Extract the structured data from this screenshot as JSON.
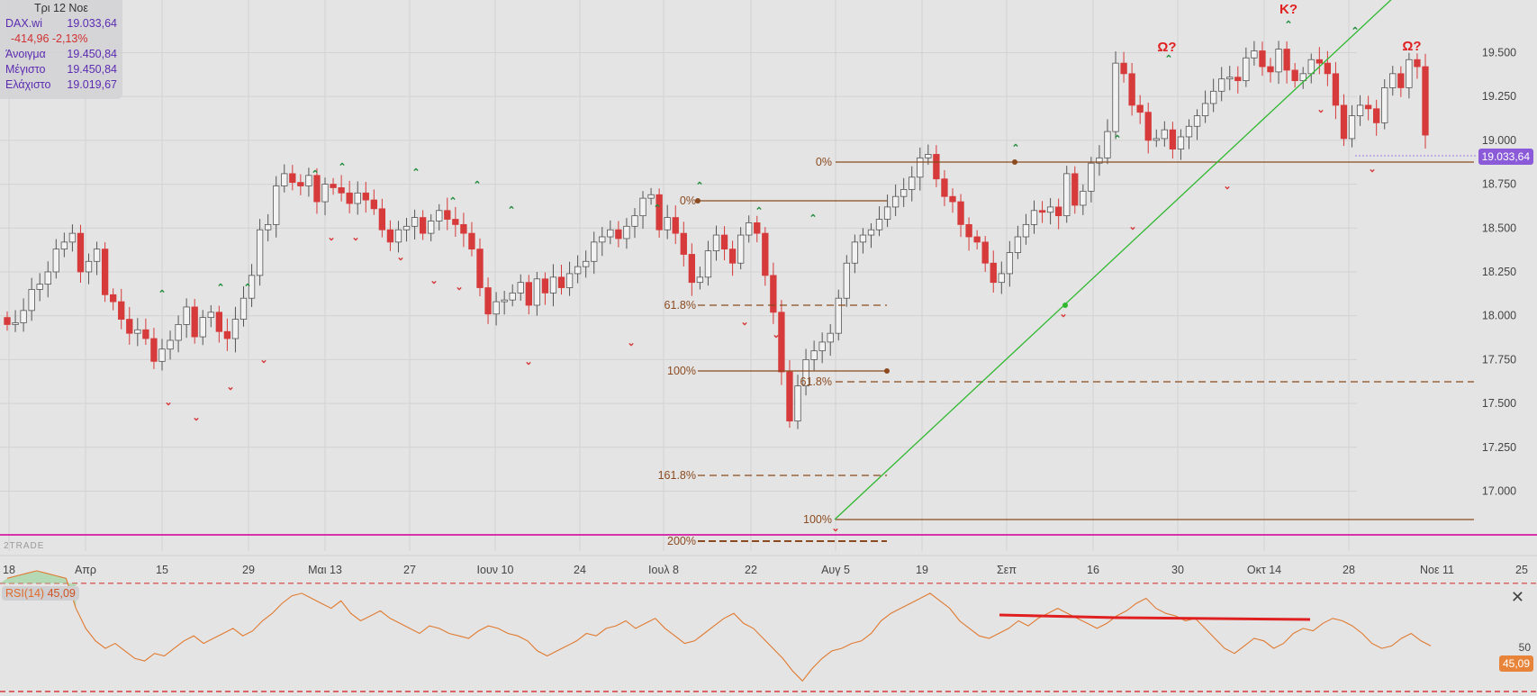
{
  "legend": {
    "date": "Τρι 12 Νοε",
    "symbol": "DAX.wi",
    "last": "19.033,64",
    "change": "-414,96 -2,13%",
    "open_label": "Άνοιγμα",
    "open": "19.450,84",
    "high_label": "Μέγιστο",
    "high": "19.450,84",
    "low_label": "Ελάχιστο",
    "low": "19.019,67"
  },
  "price_tag": "19.033,64",
  "watermark": "2TRADE",
  "rsi": {
    "label": "RSI(14)",
    "value": "45,09",
    "tag": "45,09",
    "level_label": "50",
    "close_icon": "close-icon"
  },
  "colors": {
    "bear": "#d63a3a",
    "bull": "#f2f2f2",
    "fib": "#8b4a1f",
    "trend": "#2eb82e",
    "support": "#d633aa",
    "rsi": "#e07a30",
    "accent": "#8a5ad8"
  },
  "chart_data": {
    "type": "candlestick",
    "y_ticks": [
      "19.500",
      "19.250",
      "19.000",
      "18.750",
      "18.500",
      "18.250",
      "18.000",
      "17.750",
      "17.500",
      "17.250",
      "17.000"
    ],
    "x_ticks": [
      "18",
      "Απρ",
      "15",
      "29",
      "Μαι 13",
      "27",
      "Ιουν 10",
      "24",
      "Ιουλ 8",
      "22",
      "Αυγ 5",
      "19",
      "Σεπ",
      "16",
      "30",
      "Οκτ 14",
      "28",
      "Νοε 11",
      "25"
    ],
    "ylim": [
      16900,
      19800
    ],
    "fib_labels_left": [
      "0%",
      "61.8%",
      "100%",
      "161.8%",
      "200%"
    ],
    "fib_labels_right": [
      "0%",
      "61.8%",
      "100%"
    ],
    "annotations": [
      "Ω?",
      "Κ?",
      "Ω?"
    ],
    "closes": [
      17950,
      17960,
      18030,
      18150,
      18180,
      18250,
      18380,
      18420,
      18470,
      18250,
      18310,
      18380,
      18120,
      18080,
      17980,
      17900,
      17920,
      17870,
      17740,
      17810,
      17860,
      17950,
      18050,
      17880,
      17990,
      18020,
      17910,
      17870,
      17980,
      18100,
      18230,
      18490,
      18520,
      18740,
      18810,
      18760,
      18740,
      18800,
      18650,
      18750,
      18730,
      18700,
      18640,
      18700,
      18660,
      18610,
      18490,
      18420,
      18490,
      18510,
      18560,
      18470,
      18540,
      18600,
      18550,
      18520,
      18470,
      18380,
      18160,
      18010,
      18080,
      18090,
      18130,
      18190,
      18060,
      18210,
      18130,
      18220,
      18160,
      18240,
      18280,
      18310,
      18420,
      18450,
      18490,
      18440,
      18510,
      18570,
      18670,
      18690,
      18490,
      18560,
      18470,
      18350,
      18190,
      18220,
      18370,
      18460,
      18380,
      18300,
      18460,
      18530,
      18470,
      18230,
      18020,
      17680,
      17400,
      17600,
      17750,
      17800,
      17850,
      17900,
      18100,
      18300,
      18420,
      18460,
      18490,
      18550,
      18620,
      18680,
      18720,
      18790,
      18900,
      18920,
      18780,
      18680,
      18650,
      18520,
      18450,
      18420,
      18300,
      18190,
      18240,
      18360,
      18450,
      18520,
      18600,
      18590,
      18620,
      18570,
      18810,
      18630,
      18710,
      18870,
      18900,
      19050,
      19440,
      19380,
      19200,
      19160,
      19000,
      19010,
      19060,
      18950,
      19020,
      19080,
      19140,
      19210,
      19280,
      19350,
      19360,
      19340,
      19470,
      19510,
      19420,
      19390,
      19520,
      19400,
      19340,
      19380,
      19460,
      19440,
      19380,
      19200,
      19010,
      19140,
      19200,
      19180,
      19100,
      19300,
      19380,
      19300,
      19460,
      19420,
      19030
    ],
    "rsi_values": [
      72,
      73,
      74,
      75,
      74,
      73,
      72,
      60,
      52,
      47,
      44,
      46,
      43,
      40,
      39,
      42,
      41,
      44,
      47,
      49,
      46,
      48,
      50,
      52,
      49,
      51,
      55,
      58,
      62,
      65,
      66,
      64,
      62,
      60,
      63,
      58,
      55,
      57,
      59,
      56,
      54,
      52,
      50,
      53,
      52,
      50,
      49,
      48,
      51,
      53,
      52,
      50,
      49,
      47,
      43,
      41,
      43,
      45,
      47,
      50,
      49,
      52,
      53,
      55,
      52,
      54,
      56,
      52,
      49,
      46,
      47,
      50,
      53,
      56,
      58,
      54,
      52,
      48,
      44,
      40,
      35,
      31,
      36,
      40,
      43,
      44,
      46,
      47,
      50,
      55,
      58,
      60,
      62,
      64,
      66,
      63,
      60,
      55,
      52,
      49,
      48,
      50,
      52,
      55,
      53,
      56,
      58,
      60,
      58,
      56,
      54,
      52,
      54,
      57,
      59,
      62,
      64,
      60,
      58,
      57,
      55,
      56,
      52,
      48,
      44,
      42,
      45,
      48,
      47,
      44,
      46,
      50,
      52,
      51,
      54,
      56,
      55,
      53,
      50,
      46,
      44,
      45,
      48,
      50,
      47,
      45
    ]
  }
}
